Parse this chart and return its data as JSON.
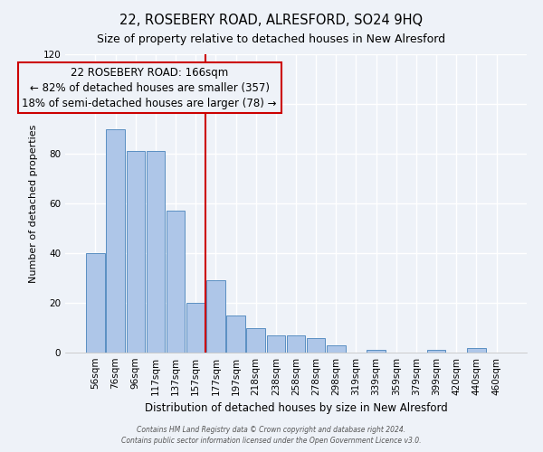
{
  "title": "22, ROSEBERY ROAD, ALRESFORD, SO24 9HQ",
  "subtitle": "Size of property relative to detached houses in New Alresford",
  "xlabel": "Distribution of detached houses by size in New Alresford",
  "ylabel": "Number of detached properties",
  "bar_labels": [
    "56sqm",
    "76sqm",
    "96sqm",
    "117sqm",
    "137sqm",
    "157sqm",
    "177sqm",
    "197sqm",
    "218sqm",
    "238sqm",
    "258sqm",
    "278sqm",
    "298sqm",
    "319sqm",
    "339sqm",
    "359sqm",
    "379sqm",
    "399sqm",
    "420sqm",
    "440sqm",
    "460sqm"
  ],
  "bar_values": [
    40,
    90,
    81,
    81,
    57,
    20,
    29,
    15,
    10,
    7,
    7,
    6,
    3,
    0,
    1,
    0,
    0,
    1,
    0,
    2,
    0
  ],
  "bar_color": "#aec6e8",
  "bar_edge_color": "#5a8fc2",
  "vline_x": 5.5,
  "vline_color": "#cc0000",
  "annotation_lines": [
    "22 ROSEBERY ROAD: 166sqm",
    "← 82% of detached houses are smaller (357)",
    "18% of semi-detached houses are larger (78) →"
  ],
  "annotation_box_edge_color": "#cc0000",
  "ylim": [
    0,
    120
  ],
  "yticks": [
    0,
    20,
    40,
    60,
    80,
    100,
    120
  ],
  "footer_line1": "Contains HM Land Registry data © Crown copyright and database right 2024.",
  "footer_line2": "Contains public sector information licensed under the Open Government Licence v3.0.",
  "background_color": "#eef2f8",
  "grid_color": "#ffffff",
  "title_fontsize": 10.5,
  "subtitle_fontsize": 9,
  "annotation_fontsize": 8.5,
  "ylabel_fontsize": 8,
  "xlabel_fontsize": 8.5,
  "tick_fontsize": 7.5,
  "footer_fontsize": 5.5
}
